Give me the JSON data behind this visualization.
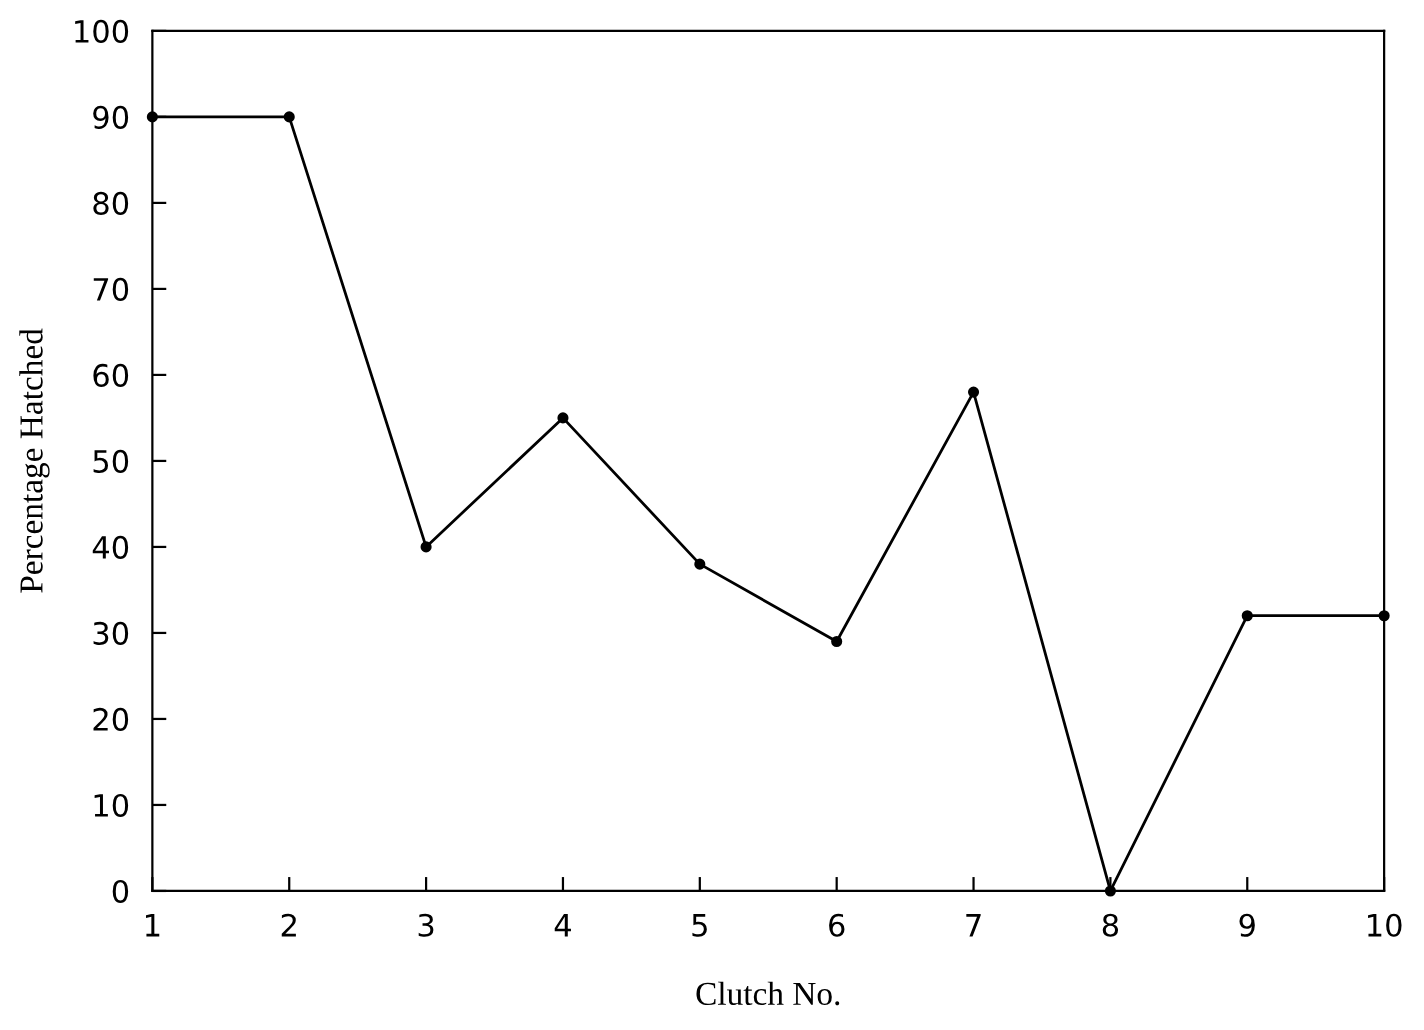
{
  "chart_data": {
    "type": "line",
    "xlabel": "Clutch No.",
    "ylabel": "Percentage Hatched",
    "x": [
      1,
      2,
      3,
      4,
      5,
      6,
      7,
      8,
      9,
      10
    ],
    "series": [
      {
        "color": "#000000",
        "values": [
          90,
          90,
          40,
          55,
          38,
          29,
          58,
          0,
          32,
          32
        ]
      }
    ],
    "xlim": [
      1,
      10
    ],
    "xticks": [
      1,
      2,
      3,
      4,
      5,
      6,
      7,
      8,
      9,
      10
    ],
    "ylim": [
      0,
      100
    ],
    "yticks": [
      0,
      10,
      20,
      30,
      40,
      50,
      60,
      70,
      80,
      90,
      100
    ],
    "grid": false,
    "legend": false,
    "marker": "circle",
    "line_style": "solid"
  }
}
